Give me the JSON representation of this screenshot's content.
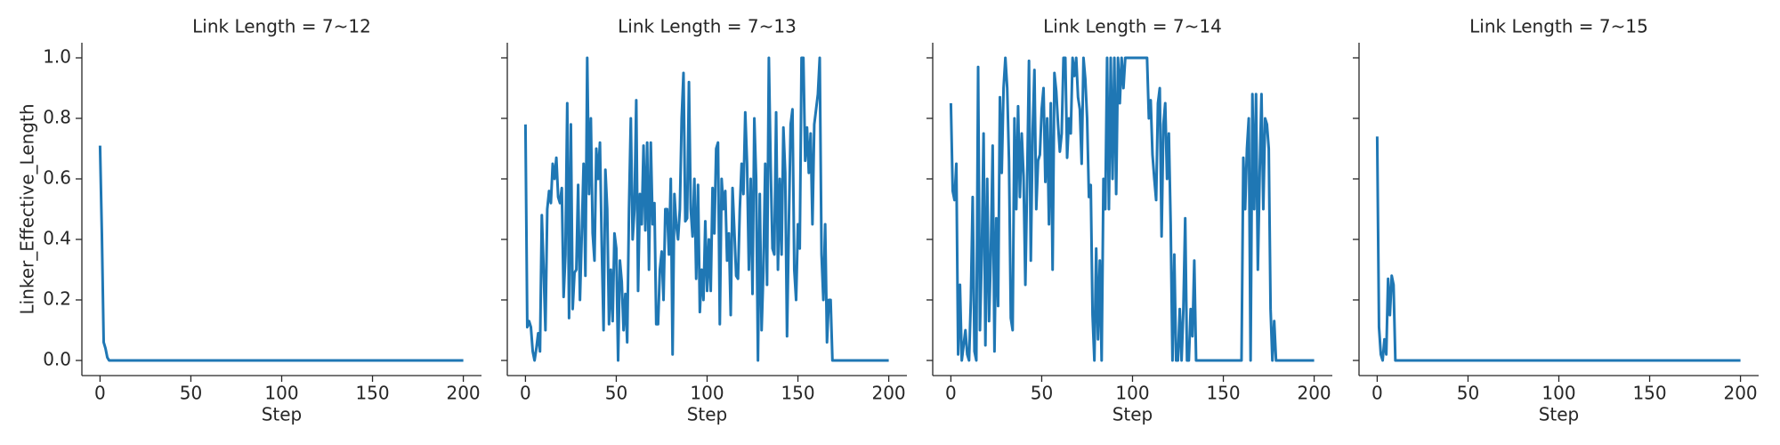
{
  "chart_data": [
    {
      "type": "line",
      "title": "Link Length = 7~12",
      "xlabel": "Step",
      "ylabel": "Linker_Effective_Length",
      "color": "#1f77b4",
      "x": [
        0,
        1,
        2,
        3,
        4,
        5,
        200
      ],
      "values": [
        0.71,
        0.42,
        0.06,
        0.04,
        0.01,
        0.0,
        0.0
      ],
      "xlim": [
        -10,
        210
      ],
      "xticks": [
        0,
        50,
        100,
        150,
        200
      ],
      "ylim": [
        -0.05,
        1.05
      ],
      "yticks": [
        {
          "value": 0,
          "label": "0.0"
        },
        0.2,
        0.4,
        0.6,
        0.8,
        {
          "value": 1,
          "label": "1.0"
        }
      ]
    },
    {
      "type": "line",
      "title": "Link Length = 7~13",
      "xlabel": "Step",
      "color": "#1f77b4",
      "x": [
        0,
        1,
        2,
        3,
        4,
        5,
        6,
        7,
        8,
        9,
        10,
        11,
        12,
        13,
        14,
        15,
        16,
        17,
        18,
        19,
        20,
        21,
        22,
        23,
        24,
        25,
        26,
        27,
        28,
        29,
        30,
        31,
        32,
        33,
        34,
        35,
        36,
        37,
        38,
        39,
        40,
        41,
        42,
        43,
        44,
        45,
        46,
        47,
        48,
        49,
        50,
        51,
        52,
        53,
        54,
        55,
        56,
        57,
        58,
        59,
        60,
        61,
        62,
        63,
        64,
        65,
        66,
        67,
        68,
        69,
        70,
        71,
        72,
        73,
        74,
        75,
        76,
        77,
        78,
        79,
        80,
        81,
        82,
        83,
        84,
        85,
        86,
        87,
        88,
        89,
        90,
        91,
        92,
        93,
        94,
        95,
        96,
        97,
        98,
        99,
        100,
        101,
        102,
        103,
        104,
        105,
        106,
        107,
        108,
        109,
        110,
        111,
        112,
        113,
        114,
        115,
        116,
        117,
        118,
        119,
        120,
        121,
        122,
        123,
        124,
        125,
        126,
        127,
        128,
        129,
        130,
        131,
        132,
        133,
        134,
        135,
        136,
        137,
        138,
        139,
        140,
        141,
        142,
        143,
        144,
        145,
        146,
        147,
        148,
        149,
        150,
        151,
        152,
        153,
        154,
        155,
        156,
        157,
        158,
        159,
        160,
        161,
        162,
        163,
        164,
        165,
        166,
        167,
        168,
        169,
        170,
        171,
        172,
        200
      ],
      "values": [
        0.78,
        0.11,
        0.13,
        0.11,
        0.03,
        0.0,
        0.04,
        0.09,
        0.03,
        0.48,
        0.3,
        0.1,
        0.5,
        0.56,
        0.52,
        0.65,
        0.6,
        0.67,
        0.54,
        0.52,
        0.57,
        0.21,
        0.35,
        0.85,
        0.14,
        0.78,
        0.17,
        0.29,
        0.3,
        0.58,
        0.2,
        0.42,
        0.65,
        0.28,
        1.0,
        0.55,
        0.8,
        0.42,
        0.33,
        0.7,
        0.6,
        0.72,
        0.38,
        0.1,
        0.63,
        0.5,
        0.12,
        0.3,
        0.13,
        0.42,
        0.37,
        0.0,
        0.33,
        0.26,
        0.1,
        0.22,
        0.06,
        0.5,
        0.8,
        0.4,
        0.5,
        0.86,
        0.23,
        0.55,
        0.45,
        0.71,
        0.43,
        0.72,
        0.3,
        0.72,
        0.45,
        0.52,
        0.12,
        0.12,
        0.3,
        0.36,
        0.2,
        0.5,
        0.5,
        0.35,
        0.6,
        0.02,
        0.55,
        0.45,
        0.4,
        0.5,
        0.8,
        0.95,
        0.46,
        0.47,
        0.92,
        0.5,
        0.41,
        0.6,
        0.27,
        0.58,
        0.16,
        0.3,
        0.2,
        0.46,
        0.23,
        0.4,
        0.23,
        0.57,
        0.42,
        0.7,
        0.72,
        0.12,
        0.6,
        0.5,
        0.56,
        0.33,
        0.42,
        0.15,
        0.57,
        0.43,
        0.28,
        0.27,
        0.5,
        0.65,
        0.55,
        0.82,
        0.65,
        0.3,
        0.6,
        0.22,
        0.8,
        0.6,
        0.0,
        0.55,
        0.1,
        0.3,
        0.65,
        0.25,
        1.0,
        0.64,
        0.37,
        0.35,
        0.82,
        0.3,
        0.6,
        0.35,
        0.77,
        0.62,
        0.08,
        0.45,
        0.78,
        0.83,
        0.3,
        0.2,
        0.45,
        0.37,
        1.0,
        1.0,
        0.66,
        0.77,
        0.62,
        0.75,
        0.45,
        0.78,
        0.83,
        0.88,
        1.0,
        0.35,
        0.2,
        0.45,
        0.06,
        0.2,
        0.2,
        0.0,
        0.0,
        0.0,
        0.0,
        0.0
      ],
      "xlim": [
        -10,
        210
      ],
      "xticks": [
        0,
        50,
        100,
        150,
        200
      ]
    },
    {
      "type": "line",
      "title": "Link Length = 7~14",
      "xlabel": "Step",
      "color": "#1f77b4",
      "x": [
        0,
        1,
        2,
        3,
        4,
        5,
        6,
        7,
        8,
        9,
        10,
        11,
        12,
        13,
        14,
        15,
        16,
        17,
        18,
        19,
        20,
        21,
        22,
        23,
        24,
        25,
        26,
        27,
        28,
        29,
        30,
        31,
        32,
        33,
        34,
        35,
        36,
        37,
        38,
        39,
        40,
        41,
        42,
        43,
        44,
        45,
        46,
        47,
        48,
        49,
        50,
        51,
        52,
        53,
        54,
        55,
        56,
        57,
        58,
        59,
        60,
        61,
        62,
        63,
        64,
        65,
        66,
        67,
        68,
        69,
        70,
        71,
        72,
        73,
        74,
        75,
        76,
        77,
        78,
        79,
        80,
        81,
        82,
        83,
        84,
        85,
        86,
        87,
        88,
        89,
        90,
        91,
        92,
        93,
        94,
        95,
        96,
        97,
        98,
        99,
        100,
        101,
        102,
        103,
        104,
        105,
        106,
        107,
        108,
        109,
        110,
        111,
        112,
        113,
        114,
        115,
        116,
        117,
        118,
        119,
        120,
        121,
        122,
        123,
        124,
        125,
        126,
        127,
        128,
        129,
        130,
        131,
        132,
        133,
        134,
        135,
        136,
        137,
        138,
        139,
        140,
        141,
        142,
        143,
        144,
        145,
        146,
        147,
        148,
        149,
        150,
        151,
        152,
        153,
        154,
        155,
        156,
        157,
        158,
        159,
        160,
        161,
        162,
        163,
        164,
        165,
        166,
        167,
        168,
        169,
        170,
        171,
        172,
        173,
        174,
        175,
        176,
        177,
        178,
        179,
        180,
        181,
        182,
        183,
        200
      ],
      "values": [
        0.85,
        0.56,
        0.53,
        0.65,
        0.02,
        0.25,
        0.0,
        0.05,
        0.1,
        0.02,
        0.0,
        0.2,
        0.54,
        0.03,
        0.0,
        0.97,
        0.1,
        0.35,
        0.75,
        0.05,
        0.6,
        0.13,
        0.35,
        0.71,
        0.03,
        0.47,
        0.18,
        0.87,
        0.62,
        0.9,
        1.0,
        0.9,
        0.66,
        0.14,
        0.1,
        0.8,
        0.5,
        0.84,
        0.54,
        0.75,
        0.61,
        0.25,
        0.6,
        0.99,
        0.33,
        0.75,
        0.96,
        0.5,
        0.66,
        0.68,
        0.83,
        0.9,
        0.59,
        0.8,
        0.45,
        0.85,
        0.3,
        0.95,
        0.89,
        0.78,
        0.69,
        0.75,
        1.0,
        1.0,
        0.67,
        0.8,
        0.75,
        1.0,
        0.94,
        1.0,
        0.87,
        0.83,
        0.65,
        1.0,
        0.93,
        0.8,
        0.54,
        0.58,
        0.15,
        0.0,
        0.37,
        0.07,
        0.33,
        0.0,
        0.6,
        0.5,
        1.0,
        0.5,
        1.0,
        0.6,
        1.0,
        0.55,
        1.0,
        0.85,
        1.0,
        0.9,
        1.0,
        1.0,
        1.0,
        1.0,
        1.0,
        1.0,
        1.0,
        1.0,
        1.0,
        1.0,
        1.0,
        1.0,
        1.0,
        0.8,
        0.86,
        0.68,
        0.6,
        0.53,
        0.85,
        0.9,
        0.41,
        0.78,
        0.85,
        0.6,
        0.75,
        0.45,
        0.0,
        0.35,
        0.0,
        0.0,
        0.17,
        0.0,
        0.17,
        0.47,
        0.0,
        0.0,
        0.17,
        0.08,
        0.33,
        0.0,
        0.0,
        0.0,
        0.0,
        0.0,
        0.0,
        0.0,
        0.0,
        0.0,
        0.0,
        0.0,
        0.0,
        0.0,
        0.0,
        0.0,
        0.0,
        0.0,
        0.0,
        0.0,
        0.0,
        0.0,
        0.0,
        0.0,
        0.0,
        0.0,
        0.0,
        0.67,
        0.5,
        0.7,
        0.8,
        0.0,
        0.88,
        0.5,
        0.88,
        0.3,
        0.62,
        0.88,
        0.5,
        0.8,
        0.78,
        0.7,
        0.17,
        0.0,
        0.13,
        0.0,
        0.0,
        0.0,
        0.0,
        0.0,
        0.0
      ],
      "xlim": [
        -10,
        210
      ],
      "xticks": [
        0,
        50,
        100,
        150,
        200
      ]
    },
    {
      "type": "line",
      "title": "Link Length = 7~15",
      "xlabel": "Step",
      "color": "#1f77b4",
      "x": [
        0,
        1,
        2,
        3,
        4,
        5,
        6,
        7,
        8,
        9,
        10,
        11,
        12,
        200
      ],
      "values": [
        0.74,
        0.11,
        0.02,
        0.0,
        0.07,
        0.02,
        0.27,
        0.15,
        0.28,
        0.25,
        0.0,
        0.0,
        0.0,
        0.0
      ],
      "xlim": [
        -10,
        210
      ],
      "xticks": [
        0,
        50,
        100,
        150,
        200
      ]
    }
  ]
}
